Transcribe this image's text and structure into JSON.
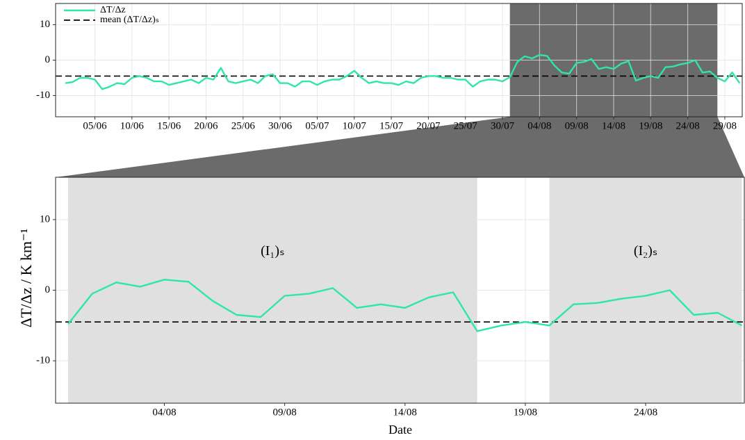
{
  "chart_data": [
    {
      "type": "line",
      "x": [
        "01/06",
        "02/06",
        "03/06",
        "04/06",
        "05/06",
        "06/06",
        "07/06",
        "08/06",
        "09/06",
        "10/06",
        "11/06",
        "12/06",
        "13/06",
        "14/06",
        "15/06",
        "16/06",
        "17/06",
        "18/06",
        "19/06",
        "20/06",
        "21/06",
        "22/06",
        "23/06",
        "24/06",
        "25/06",
        "26/06",
        "27/06",
        "28/06",
        "29/06",
        "30/06",
        "01/07",
        "02/07",
        "03/07",
        "04/07",
        "05/07",
        "06/07",
        "07/07",
        "08/07",
        "09/07",
        "10/07",
        "11/07",
        "12/07",
        "13/07",
        "14/07",
        "15/07",
        "16/07",
        "17/07",
        "18/07",
        "19/07",
        "20/07",
        "21/07",
        "22/07",
        "23/07",
        "24/07",
        "25/07",
        "26/07",
        "27/07",
        "28/07",
        "29/07",
        "30/07",
        "31/07",
        "01/08",
        "02/08",
        "03/08",
        "04/08",
        "05/08",
        "06/08",
        "07/08",
        "08/08",
        "09/08",
        "10/08",
        "11/08",
        "12/08",
        "13/08",
        "14/08",
        "15/08",
        "16/08",
        "17/08",
        "18/08",
        "19/08",
        "20/08",
        "21/08",
        "22/08",
        "23/08",
        "24/08",
        "25/08",
        "26/08",
        "27/08",
        "28/08",
        "29/08",
        "30/08",
        "31/08"
      ],
      "series": [
        {
          "name": "ΔT/Δz",
          "color": "#2ee6a6",
          "values": [
            -6.5,
            -6.2,
            -5,
            -5,
            -5.5,
            -8.2,
            -7.5,
            -6.5,
            -6.8,
            -5,
            -4.5,
            -5,
            -6,
            -6,
            -7,
            -6.5,
            -6,
            -5.5,
            -6.5,
            -5,
            -5.5,
            -2.2,
            -6,
            -6.5,
            -6,
            -5.5,
            -6.5,
            -4.5,
            -4,
            -6.5,
            -6.5,
            -7.5,
            -6,
            -6,
            -7,
            -6,
            -5.5,
            -5.5,
            -4.5,
            -3,
            -5,
            -6.5,
            -6,
            -6.5,
            -6.5,
            -7,
            -6,
            -6.5,
            -5,
            -4.5,
            -4.5,
            -5,
            -5,
            -5.5,
            -5.5,
            -7.5,
            -6,
            -5.5,
            -5.5,
            -6,
            -4.8,
            -0.5,
            1.1,
            0.5,
            1.5,
            1.2,
            -1.5,
            -3.5,
            -3.8,
            -0.8,
            -0.5,
            0.3,
            -2.5,
            -2,
            -2.5,
            -1,
            -0.3,
            -5.8,
            -5,
            -4.5,
            -5,
            -2,
            -1.8,
            -1.2,
            -0.8,
            0,
            -3.5,
            -3.2,
            -5,
            -6,
            -3.5,
            -6.5
          ]
        }
      ],
      "hline": {
        "name": "mean (ΔT/Δz)ₛ",
        "value": -4.5,
        "color": "#000000"
      },
      "xticks": [
        "05/06",
        "10/06",
        "15/06",
        "20/06",
        "25/06",
        "30/06",
        "05/07",
        "10/07",
        "15/07",
        "20/07",
        "25/07",
        "30/07",
        "04/08",
        "09/08",
        "14/08",
        "19/08",
        "24/08",
        "29/08"
      ],
      "ylim": [
        -16,
        16
      ],
      "yticks": [
        -10,
        0,
        10
      ],
      "grid": true,
      "legend": "top-left"
    },
    {
      "type": "line",
      "x": [
        "31/07",
        "01/08",
        "02/08",
        "03/08",
        "04/08",
        "05/08",
        "06/08",
        "07/08",
        "08/08",
        "09/08",
        "10/08",
        "11/08",
        "12/08",
        "13/08",
        "14/08",
        "15/08",
        "16/08",
        "17/08",
        "18/08",
        "19/08",
        "20/08",
        "21/08",
        "22/08",
        "23/08",
        "24/08",
        "25/08",
        "26/08",
        "27/08",
        "28/08"
      ],
      "series": [
        {
          "color": "#2ee6a6",
          "values": [
            -4.8,
            -0.5,
            1.1,
            0.5,
            1.5,
            1.2,
            -1.5,
            -3.5,
            -3.8,
            -0.8,
            -0.5,
            0.3,
            -2.5,
            -2,
            -2.5,
            -1,
            -0.3,
            -5.8,
            -5,
            -4.5,
            -5,
            -2,
            -1.8,
            -1.2,
            -0.8,
            0,
            -3.5,
            -3.2,
            -5
          ]
        }
      ],
      "hline": {
        "value": -4.5,
        "color": "#000000"
      },
      "shaded": [
        {
          "label": "(I₁)ₛ",
          "start": "31/07",
          "end": "17/08"
        },
        {
          "label": "(I₂)ₛ",
          "start": "20/08",
          "end": "28/08"
        }
      ],
      "xticks": [
        "04/08",
        "09/08",
        "14/08",
        "19/08",
        "24/08"
      ],
      "ylim": [
        -16,
        16
      ],
      "yticks": [
        -10,
        0,
        10
      ],
      "grid": true,
      "x_label": "Date",
      "y_label": "ΔT/Δz / K km⁻¹"
    }
  ]
}
